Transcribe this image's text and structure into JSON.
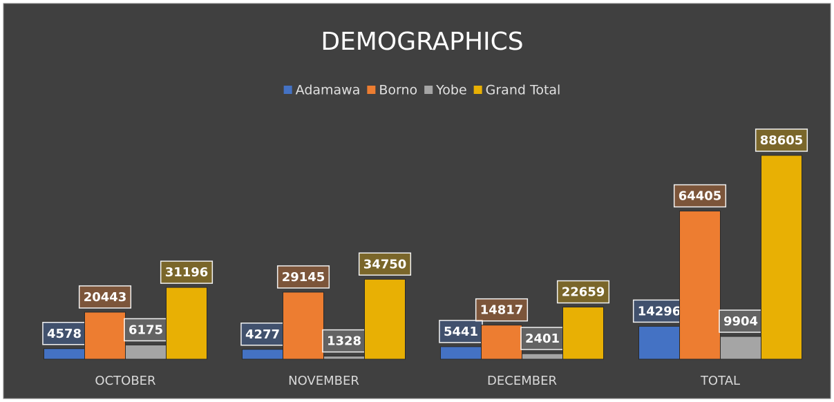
{
  "chart_data": {
    "type": "bar",
    "title": "DEMOGRAPHICS",
    "categories": [
      "OCTOBER",
      "NOVEMBER",
      "DECEMBER",
      "TOTAL"
    ],
    "series": [
      {
        "name": "Adamawa",
        "color": "#4472c4",
        "values": [
          4578,
          4277,
          5441,
          14296
        ]
      },
      {
        "name": "Borno",
        "color": "#ed7d31",
        "values": [
          20443,
          29145,
          14817,
          64405
        ]
      },
      {
        "name": "Yobe",
        "color": "#a5a5a5",
        "values": [
          6175,
          1328,
          2401,
          9904
        ]
      },
      {
        "name": "Grand Total",
        "color": "#e8b004",
        "values": [
          31196,
          34750,
          22659,
          88605
        ]
      }
    ],
    "ylim": [
      0,
      100000
    ],
    "legend": "top"
  }
}
